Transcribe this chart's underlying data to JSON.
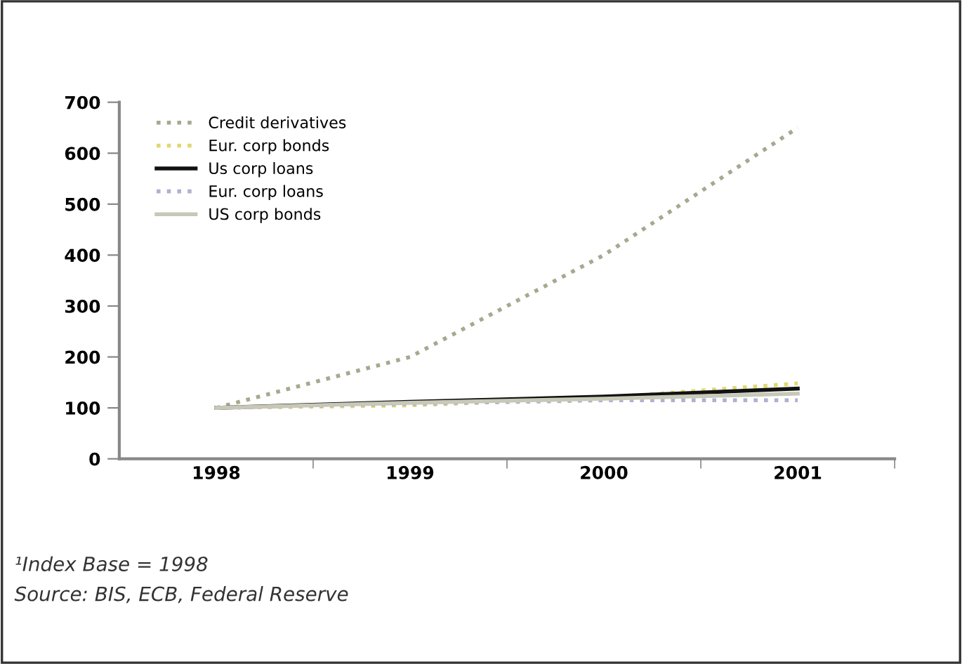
{
  "chart_data": {
    "type": "line",
    "categories": [
      "1998",
      "1999",
      "2000",
      "2001"
    ],
    "series": [
      {
        "name": "Credit derivatives",
        "color": "#a8a890",
        "line_style": "dotted",
        "values": [
          100,
          200,
          400,
          650
        ]
      },
      {
        "name": "Eur. corp bonds",
        "color": "#e0d870",
        "line_style": "dotted",
        "values": [
          100,
          105,
          120,
          148
        ]
      },
      {
        "name": "Us corp loans",
        "color": "#111111",
        "line_style": "solid",
        "values": [
          100,
          112,
          122,
          138
        ]
      },
      {
        "name": "Eur. corp loans",
        "color": "#b0b0d0",
        "line_style": "dotted",
        "values": [
          100,
          108,
          115,
          115
        ]
      },
      {
        "name": "US corp bonds",
        "color": "#c8c8b8",
        "line_style": "solid",
        "values": [
          100,
          110,
          118,
          128
        ]
      }
    ],
    "ylim": [
      0,
      700
    ],
    "yticks": [
      0,
      100,
      200,
      300,
      400,
      500,
      600,
      700
    ],
    "grid": false,
    "legend": "top left",
    "marker": "none",
    "annotations": [
      "¹Index Base = 1998",
      "Source: BIS, ECB, Federal Reserve"
    ]
  }
}
